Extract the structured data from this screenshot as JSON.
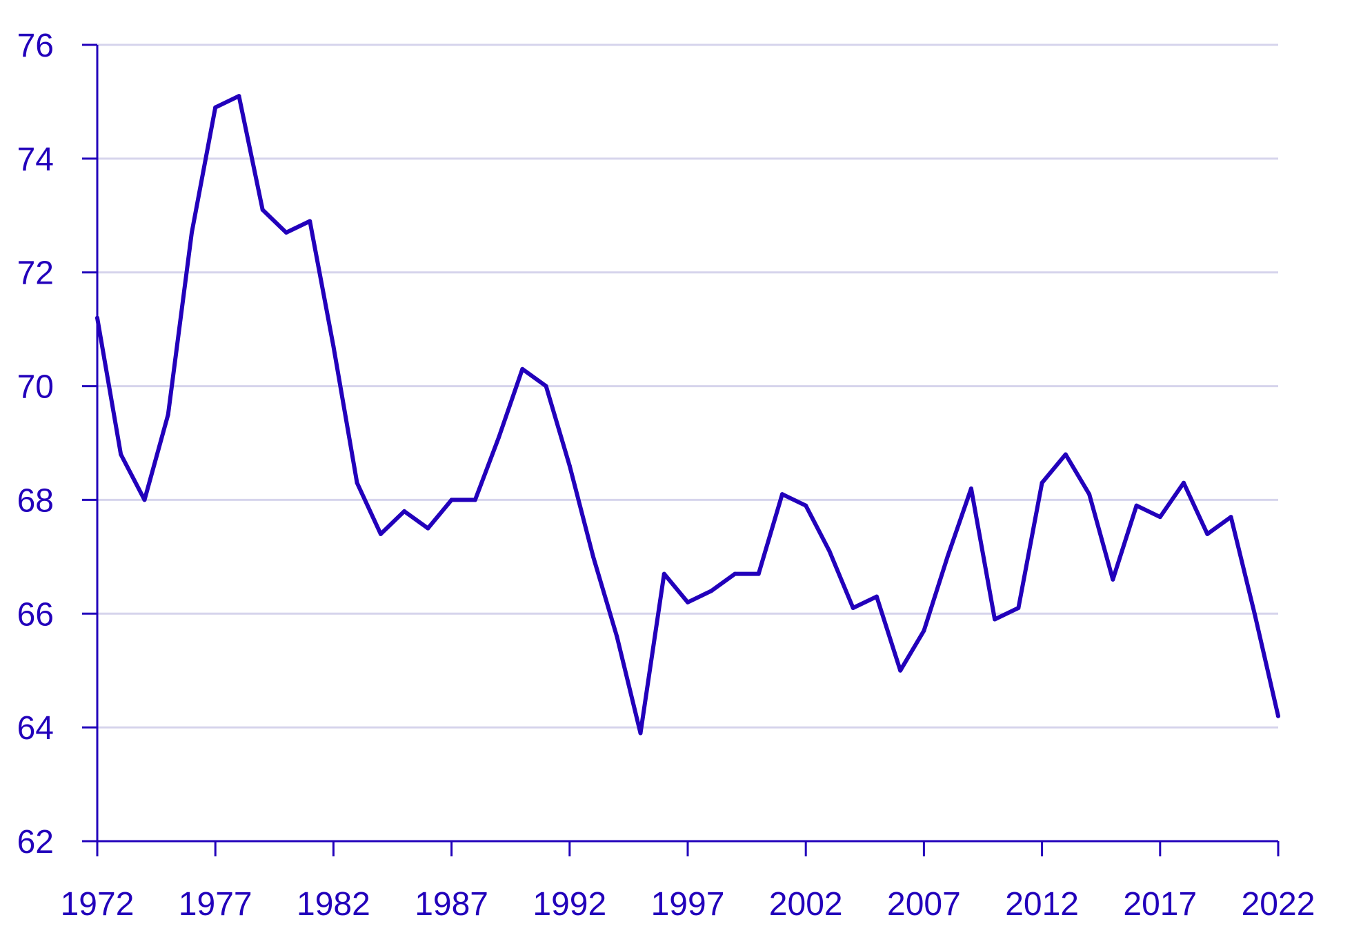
{
  "colors": {
    "line": "#2200bb",
    "axis": "#2200bb",
    "grid": "#d6d4ec",
    "text": "#2200bb"
  },
  "chart_data": {
    "type": "line",
    "title": "",
    "xlabel": "",
    "ylabel": "",
    "xlim": [
      1972,
      2022
    ],
    "ylim": [
      62,
      76
    ],
    "grid": true,
    "x_ticks": [
      1972,
      1977,
      1982,
      1987,
      1992,
      1997,
      2002,
      2007,
      2012,
      2017,
      2022
    ],
    "y_ticks": [
      62,
      64,
      66,
      68,
      70,
      72,
      74,
      76
    ],
    "series": [
      {
        "x": [
          1972,
          1973,
          1974,
          1975,
          1976,
          1977,
          1978,
          1979,
          1980,
          1981,
          1982,
          1983,
          1984,
          1985,
          1986,
          1987,
          1988,
          1989,
          1990,
          1991,
          1992,
          1993,
          1994,
          1995,
          1996,
          1997,
          1998,
          1999,
          2000,
          2001,
          2002,
          2003,
          2004,
          2005,
          2006,
          2007,
          2008,
          2009,
          2010,
          2011,
          2012,
          2013,
          2014,
          2015,
          2016,
          2017,
          2018,
          2019,
          2020,
          2021,
          2022
        ],
        "values": [
          71.2,
          68.8,
          68.0,
          69.5,
          72.7,
          74.9,
          75.1,
          73.1,
          72.7,
          72.9,
          70.7,
          68.3,
          67.4,
          67.8,
          67.5,
          68.0,
          68.0,
          69.1,
          70.3,
          70.0,
          68.6,
          67.0,
          65.6,
          63.9,
          66.7,
          66.2,
          66.4,
          66.7,
          66.7,
          68.1,
          67.9,
          67.1,
          66.1,
          66.3,
          65.0,
          65.7,
          67.0,
          68.2,
          65.9,
          66.1,
          68.3,
          68.8,
          68.1,
          66.6,
          67.9,
          67.7,
          68.3,
          67.4,
          67.7,
          66.0,
          64.2
        ]
      }
    ]
  }
}
